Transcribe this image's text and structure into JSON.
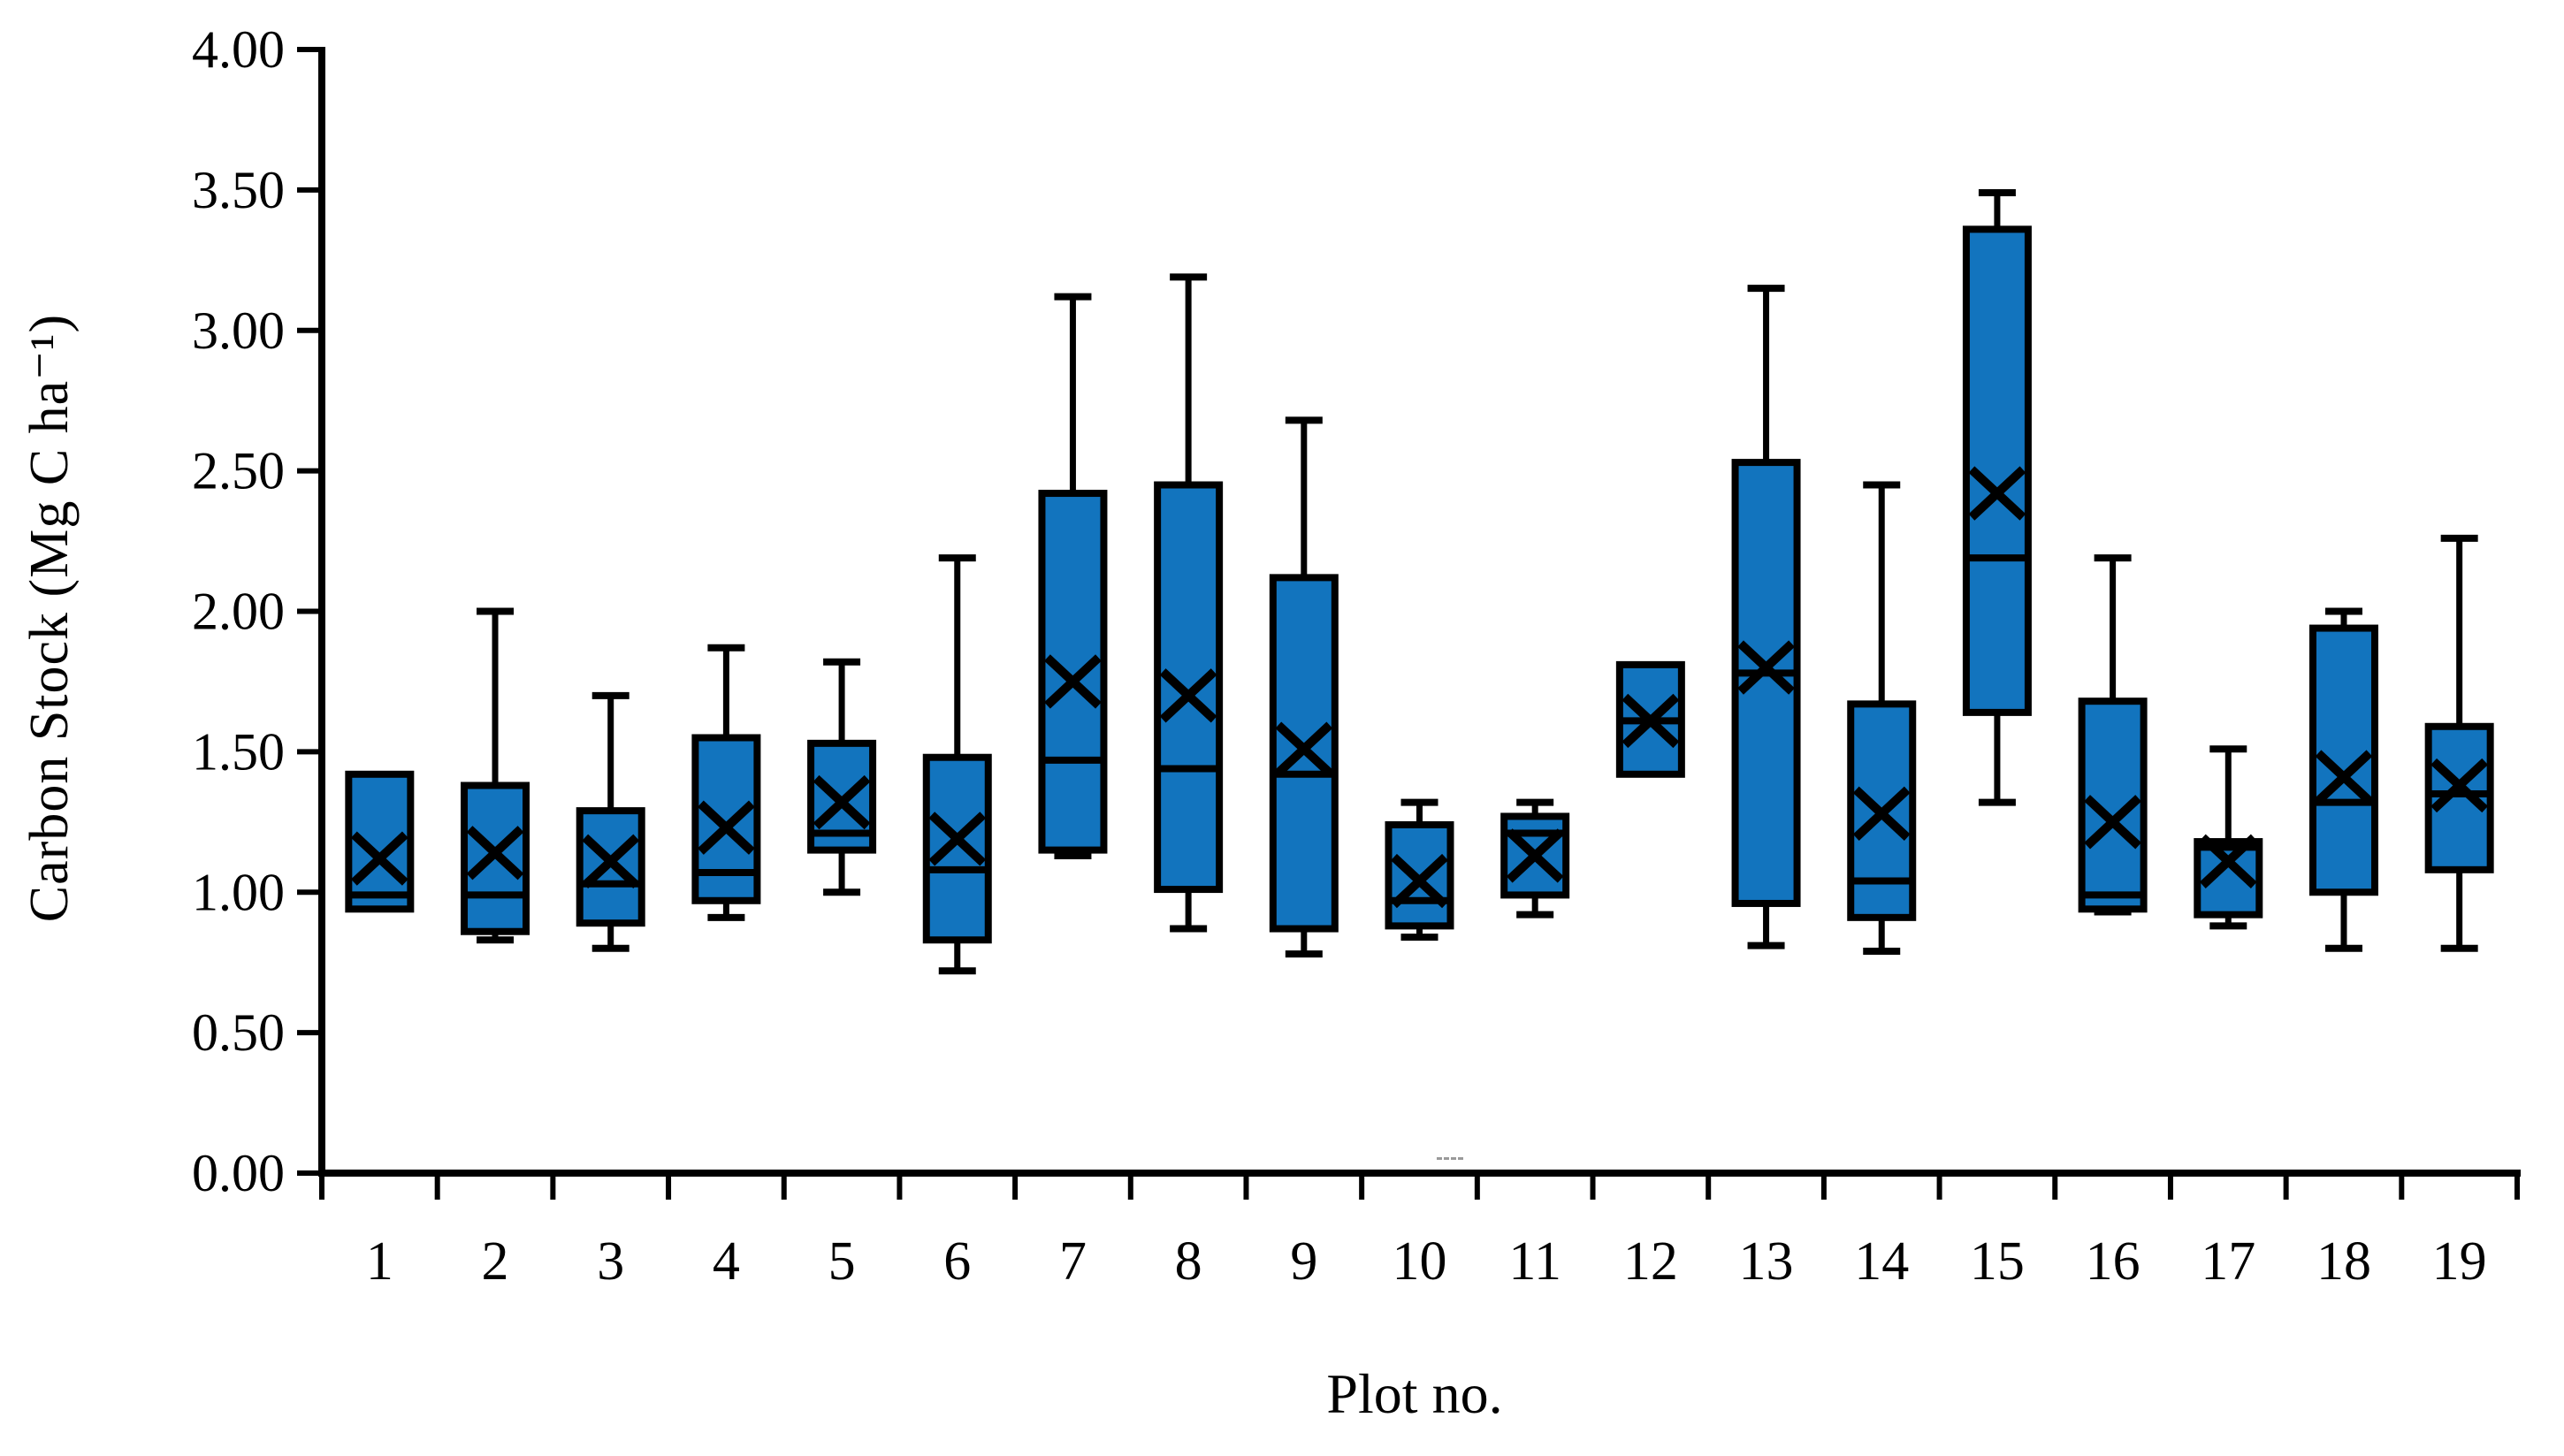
{
  "figure": {
    "background_color": "#ffffff",
    "box_fill_color": "#1274BE",
    "line_color": "#000000"
  },
  "chart_data": {
    "type": "box",
    "title": "",
    "xlabel": "Plot no.",
    "ylabel": "Carbon Stock (Mg C ha⁻¹)",
    "ylim": [
      0.0,
      4.0
    ],
    "ytick_step": 0.5,
    "ytick_decimals": 2,
    "grid": false,
    "legend": "none",
    "categories": [
      "1",
      "2",
      "3",
      "4",
      "5",
      "6",
      "7",
      "8",
      "9",
      "10",
      "11",
      "12",
      "13",
      "14",
      "15",
      "16",
      "17",
      "18",
      "19"
    ],
    "boxes": [
      {
        "plot": "1",
        "min": 0.94,
        "q1": 0.94,
        "median": 0.99,
        "mean": 1.12,
        "q3": 1.42,
        "max": 1.42
      },
      {
        "plot": "2",
        "min": 0.83,
        "q1": 0.86,
        "median": 0.99,
        "mean": 1.14,
        "q3": 1.38,
        "max": 2.0
      },
      {
        "plot": "3",
        "min": 0.8,
        "q1": 0.89,
        "median": 1.03,
        "mean": 1.11,
        "q3": 1.29,
        "max": 1.7
      },
      {
        "plot": "4",
        "min": 0.91,
        "q1": 0.97,
        "median": 1.07,
        "mean": 1.23,
        "q3": 1.55,
        "max": 1.87
      },
      {
        "plot": "5",
        "min": 1.0,
        "q1": 1.15,
        "median": 1.21,
        "mean": 1.32,
        "q3": 1.53,
        "max": 1.82
      },
      {
        "plot": "6",
        "min": 0.72,
        "q1": 0.83,
        "median": 1.08,
        "mean": 1.19,
        "q3": 1.48,
        "max": 2.19
      },
      {
        "plot": "7",
        "min": 1.13,
        "q1": 1.15,
        "median": 1.47,
        "mean": 1.75,
        "q3": 2.42,
        "max": 3.12
      },
      {
        "plot": "8",
        "min": 0.87,
        "q1": 1.01,
        "median": 1.44,
        "mean": 1.7,
        "q3": 2.45,
        "max": 3.19
      },
      {
        "plot": "9",
        "min": 0.78,
        "q1": 0.87,
        "median": 1.42,
        "mean": 1.51,
        "q3": 2.12,
        "max": 2.68
      },
      {
        "plot": "10",
        "min": 0.84,
        "q1": 0.88,
        "median": 0.97,
        "mean": 1.04,
        "q3": 1.24,
        "max": 1.32
      },
      {
        "plot": "11",
        "min": 0.92,
        "q1": 0.99,
        "median": 1.21,
        "mean": 1.13,
        "q3": 1.27,
        "max": 1.32
      },
      {
        "plot": "12",
        "min": 1.42,
        "q1": 1.42,
        "median": 1.61,
        "mean": 1.61,
        "q3": 1.81,
        "max": 1.81
      },
      {
        "plot": "13",
        "min": 0.81,
        "q1": 0.96,
        "median": 1.78,
        "mean": 1.8,
        "q3": 2.53,
        "max": 3.15
      },
      {
        "plot": "14",
        "min": 0.79,
        "q1": 0.91,
        "median": 1.04,
        "mean": 1.28,
        "q3": 1.67,
        "max": 2.45
      },
      {
        "plot": "15",
        "min": 1.32,
        "q1": 1.64,
        "median": 2.19,
        "mean": 2.42,
        "q3": 3.36,
        "max": 3.49
      },
      {
        "plot": "16",
        "min": 0.93,
        "q1": 0.94,
        "median": 0.99,
        "mean": 1.25,
        "q3": 1.68,
        "max": 2.19
      },
      {
        "plot": "17",
        "min": 0.88,
        "q1": 0.92,
        "median": 1.16,
        "mean": 1.11,
        "q3": 1.18,
        "max": 1.51
      },
      {
        "plot": "18",
        "min": 0.8,
        "q1": 1.0,
        "median": 1.32,
        "mean": 1.41,
        "q3": 1.94,
        "max": 2.0
      },
      {
        "plot": "19",
        "min": 0.8,
        "q1": 1.08,
        "median": 1.35,
        "mean": 1.38,
        "q3": 1.59,
        "max": 2.26
      }
    ]
  }
}
